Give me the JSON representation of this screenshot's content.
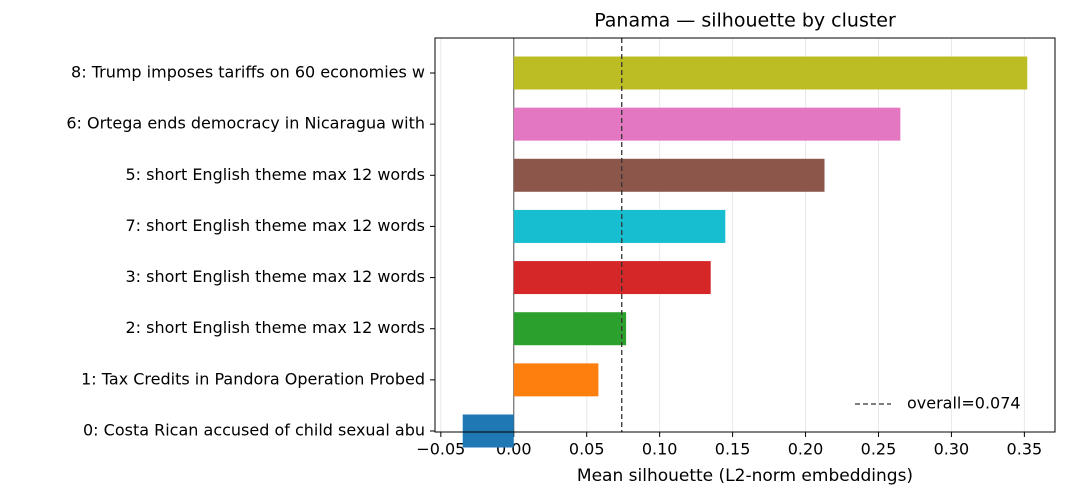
{
  "chart_data": {
    "type": "barh",
    "title": "Panama — silhouette by cluster",
    "xlabel": "Mean silhouette (L2-norm embeddings)",
    "categories": [
      "8: Trump imposes tariffs on 60 economies w",
      "6: Ortega ends democracy in Nicaragua with",
      "5: short English theme max 12 words",
      "7: short English theme max 12 words",
      "3: short English theme max 12 words",
      "2: short English theme max 12 words",
      "1: Tax Credits in Pandora Operation Probed",
      "0: Costa Rican accused of child sexual abu"
    ],
    "values": [
      0.352,
      0.265,
      0.213,
      0.145,
      0.135,
      0.077,
      0.058,
      -0.035
    ],
    "colors": [
      "#bcbd22",
      "#e377c2",
      "#8c564b",
      "#17becf",
      "#d62728",
      "#2ca02c",
      "#ff7f0e",
      "#1f77b4"
    ],
    "xlim": [
      -0.054,
      0.371
    ],
    "xticks": [
      {
        "value": -0.05,
        "label": "−0.05"
      },
      {
        "value": 0,
        "label": "0.00"
      },
      {
        "value": 0.05,
        "label": "0.05"
      },
      {
        "value": 0.1,
        "label": "0.10"
      },
      {
        "value": 0.15,
        "label": "0.15"
      },
      {
        "value": 0.2,
        "label": "0.20"
      },
      {
        "value": 0.25,
        "label": "0.25"
      },
      {
        "value": 0.3,
        "label": "0.30"
      },
      {
        "value": 0.35,
        "label": "0.35"
      }
    ],
    "reference_line": {
      "value": 0.074,
      "label": "overall=0.074"
    },
    "grid": true,
    "legend_loc": "lower right"
  }
}
